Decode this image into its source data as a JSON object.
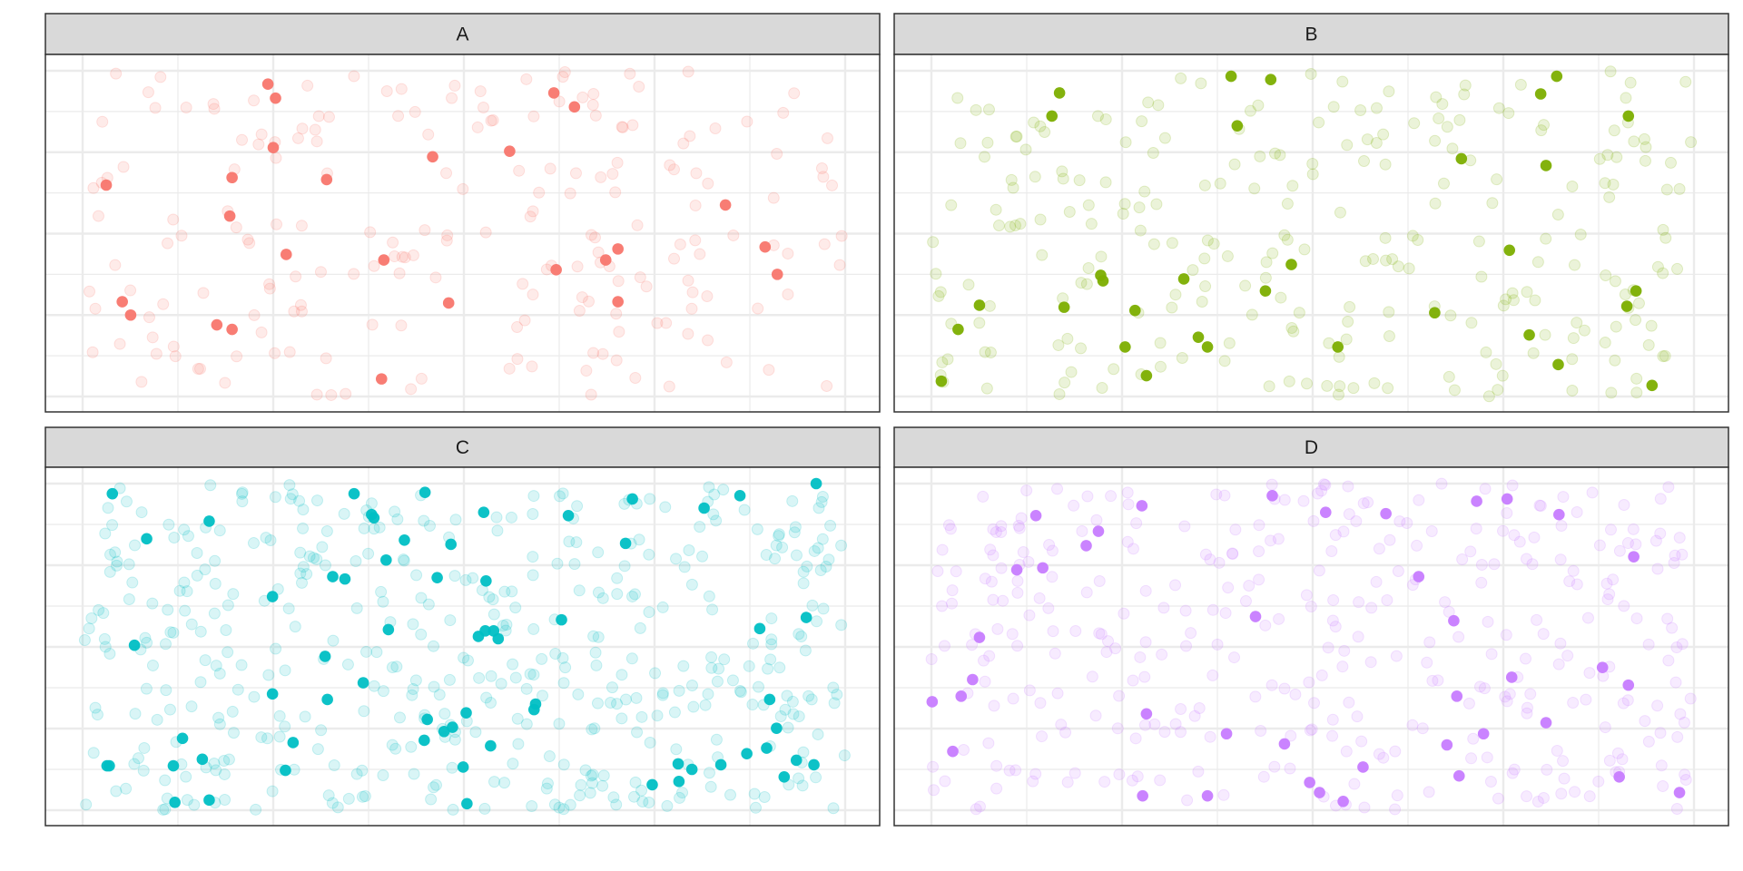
{
  "chart_data": {
    "type": "scatter",
    "layout": "facet-grid-2x2",
    "axis_text": "none",
    "grid": true,
    "xlim": [
      0,
      1
    ],
    "ylim": [
      0,
      1
    ],
    "background_opacity": 0.15,
    "panels": [
      {
        "label": "A",
        "color": "#F8766D",
        "background_count": 200,
        "highlighted": [
          [
            0.243,
            0.959
          ],
          [
            0.253,
            0.916
          ],
          [
            0.618,
            0.932
          ],
          [
            0.645,
            0.889
          ],
          [
            0.25,
            0.764
          ],
          [
            0.459,
            0.736
          ],
          [
            0.56,
            0.753
          ],
          [
            0.031,
            0.649
          ],
          [
            0.196,
            0.672
          ],
          [
            0.32,
            0.666
          ],
          [
            0.843,
            0.588
          ],
          [
            0.193,
            0.554
          ],
          [
            0.267,
            0.436
          ],
          [
            0.395,
            0.419
          ],
          [
            0.702,
            0.453
          ],
          [
            0.686,
            0.419
          ],
          [
            0.621,
            0.389
          ],
          [
            0.895,
            0.459
          ],
          [
            0.911,
            0.375
          ],
          [
            0.052,
            0.291
          ],
          [
            0.063,
            0.25
          ],
          [
            0.48,
            0.287
          ],
          [
            0.702,
            0.291
          ],
          [
            0.176,
            0.22
          ],
          [
            0.196,
            0.206
          ],
          [
            0.392,
            0.054
          ]
        ]
      },
      {
        "label": "B",
        "color": "#7CAE00",
        "background_count": 250,
        "highlighted": [
          [
            0.168,
            0.932
          ],
          [
            0.158,
            0.861
          ],
          [
            0.393,
            0.983
          ],
          [
            0.445,
            0.973
          ],
          [
            0.82,
            0.983
          ],
          [
            0.799,
            0.929
          ],
          [
            0.914,
            0.861
          ],
          [
            0.401,
            0.831
          ],
          [
            0.695,
            0.73
          ],
          [
            0.806,
            0.709
          ],
          [
            0.758,
            0.449
          ],
          [
            0.472,
            0.405
          ],
          [
            0.222,
            0.372
          ],
          [
            0.225,
            0.355
          ],
          [
            0.331,
            0.361
          ],
          [
            0.438,
            0.324
          ],
          [
            0.924,
            0.324
          ],
          [
            0.912,
            0.277
          ],
          [
            0.063,
            0.28
          ],
          [
            0.174,
            0.274
          ],
          [
            0.267,
            0.264
          ],
          [
            0.66,
            0.257
          ],
          [
            0.035,
            0.206
          ],
          [
            0.35,
            0.182
          ],
          [
            0.362,
            0.152
          ],
          [
            0.254,
            0.152
          ],
          [
            0.533,
            0.152
          ],
          [
            0.784,
            0.189
          ],
          [
            0.822,
            0.098
          ],
          [
            0.282,
            0.064
          ],
          [
            0.013,
            0.047
          ],
          [
            0.945,
            0.034
          ]
        ]
      },
      {
        "label": "C",
        "color": "#00BFC4",
        "background_count": 450,
        "highlighted": [
          [
            0.039,
            0.969
          ],
          [
            0.166,
            0.885
          ],
          [
            0.084,
            0.831
          ],
          [
            0.356,
            0.969
          ],
          [
            0.449,
            0.973
          ],
          [
            0.379,
            0.905
          ],
          [
            0.382,
            0.895
          ],
          [
            0.526,
            0.912
          ],
          [
            0.637,
            0.902
          ],
          [
            0.721,
            0.953
          ],
          [
            0.815,
            0.925
          ],
          [
            0.862,
            0.963
          ],
          [
            0.962,
            1.0
          ],
          [
            0.422,
            0.827
          ],
          [
            0.483,
            0.814
          ],
          [
            0.398,
            0.766
          ],
          [
            0.712,
            0.817
          ],
          [
            0.328,
            0.715
          ],
          [
            0.344,
            0.708
          ],
          [
            0.465,
            0.712
          ],
          [
            0.529,
            0.702
          ],
          [
            0.249,
            0.654
          ],
          [
            0.628,
            0.583
          ],
          [
            0.949,
            0.59
          ],
          [
            0.401,
            0.553
          ],
          [
            0.519,
            0.532
          ],
          [
            0.528,
            0.549
          ],
          [
            0.539,
            0.549
          ],
          [
            0.545,
            0.525
          ],
          [
            0.068,
            0.505
          ],
          [
            0.888,
            0.556
          ],
          [
            0.318,
            0.471
          ],
          [
            0.368,
            0.39
          ],
          [
            0.249,
            0.356
          ],
          [
            0.321,
            0.339
          ],
          [
            0.901,
            0.339
          ],
          [
            0.594,
            0.325
          ],
          [
            0.592,
            0.308
          ],
          [
            0.452,
            0.278
          ],
          [
            0.485,
            0.254
          ],
          [
            0.474,
            0.241
          ],
          [
            0.503,
            0.298
          ],
          [
            0.131,
            0.22
          ],
          [
            0.276,
            0.207
          ],
          [
            0.448,
            0.214
          ],
          [
            0.535,
            0.197
          ],
          [
            0.91,
            0.251
          ],
          [
            0.897,
            0.19
          ],
          [
            0.157,
            0.156
          ],
          [
            0.032,
            0.136
          ],
          [
            0.035,
            0.136
          ],
          [
            0.119,
            0.136
          ],
          [
            0.266,
            0.122
          ],
          [
            0.499,
            0.132
          ],
          [
            0.781,
            0.142
          ],
          [
            0.799,
            0.125
          ],
          [
            0.837,
            0.139
          ],
          [
            0.871,
            0.173
          ],
          [
            0.936,
            0.153
          ],
          [
            0.959,
            0.139
          ],
          [
            0.92,
            0.102
          ],
          [
            0.747,
            0.078
          ],
          [
            0.782,
            0.088
          ],
          [
            0.121,
            0.024
          ],
          [
            0.166,
            0.031
          ],
          [
            0.504,
            0.02
          ]
        ]
      },
      {
        "label": "D",
        "color": "#C77CFF",
        "background_count": 350,
        "highlighted": [
          [
            0.276,
            0.932
          ],
          [
            0.447,
            0.963
          ],
          [
            0.715,
            0.946
          ],
          [
            0.755,
            0.953
          ],
          [
            0.517,
            0.912
          ],
          [
            0.596,
            0.908
          ],
          [
            0.823,
            0.905
          ],
          [
            0.137,
            0.902
          ],
          [
            0.219,
            0.854
          ],
          [
            0.203,
            0.81
          ],
          [
            0.112,
            0.736
          ],
          [
            0.146,
            0.742
          ],
          [
            0.921,
            0.776
          ],
          [
            0.639,
            0.715
          ],
          [
            0.425,
            0.593
          ],
          [
            0.685,
            0.58
          ],
          [
            0.063,
            0.529
          ],
          [
            0.054,
            0.4
          ],
          [
            0.039,
            0.349
          ],
          [
            0.001,
            0.332
          ],
          [
            0.761,
            0.407
          ],
          [
            0.88,
            0.437
          ],
          [
            0.914,
            0.383
          ],
          [
            0.689,
            0.349
          ],
          [
            0.282,
            0.295
          ],
          [
            0.806,
            0.268
          ],
          [
            0.387,
            0.234
          ],
          [
            0.463,
            0.203
          ],
          [
            0.724,
            0.234
          ],
          [
            0.676,
            0.2
          ],
          [
            0.028,
            0.18
          ],
          [
            0.566,
            0.132
          ],
          [
            0.692,
            0.105
          ],
          [
            0.902,
            0.102
          ],
          [
            0.277,
            0.044
          ],
          [
            0.362,
            0.044
          ],
          [
            0.496,
            0.085
          ],
          [
            0.509,
            0.054
          ],
          [
            0.54,
            0.027
          ],
          [
            0.981,
            0.054
          ]
        ]
      }
    ]
  }
}
